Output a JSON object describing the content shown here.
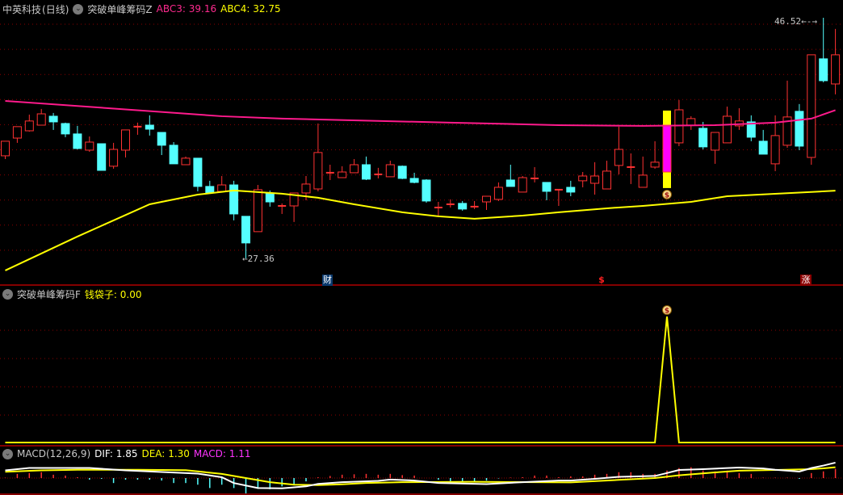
{
  "header": {
    "stock_name": "中英科技",
    "period": "(日线)",
    "indicator_main": "突破单峰筹码Z",
    "abc3_label": "ABC3:",
    "abc3_value": "39.16",
    "abc4_label": "ABC4:",
    "abc4_value": "32.75"
  },
  "sub_panel": {
    "indicator": "突破单峰筹码F",
    "label": "钱袋子:",
    "value": "0.00"
  },
  "macd_panel": {
    "name": "MACD(12,26,9)",
    "dif_label": "DIF:",
    "dif_value": "1.85",
    "dea_label": "DEA:",
    "dea_value": "1.30",
    "macd_label": "MACD:",
    "macd_value": "1.11"
  },
  "price_labels": {
    "high": "46.52",
    "low": "27.36",
    "high_arrow": "←-→",
    "low_arrow": "←"
  },
  "markers": {
    "cai": "财",
    "dollar": "$",
    "zhang": "涨"
  },
  "icons": {
    "collapse": "chevron-down-icon",
    "money_bag": "money-bag-icon"
  },
  "colors": {
    "up": "#ff3232",
    "down": "#54ffff",
    "ma_abc3": "#ff1a8c",
    "ma_abc4": "#ffff00",
    "signal": "#ffff00",
    "highlight": "#ffff00",
    "highlight_body": "#ff00ff",
    "grid": "#8b0000",
    "separator": "#b00000",
    "dif": "#ffffff",
    "dea": "#ffff00"
  },
  "chart_data": {
    "type": "candlestick",
    "price_range": [
      27.36,
      46.52
    ],
    "candles": [
      [
        35.53,
        36.69,
        35.27,
        36.69
      ],
      [
        36.94,
        37.85,
        36.56,
        37.85
      ],
      [
        37.52,
        38.81,
        37.46,
        38.3
      ],
      [
        37.97,
        39.26,
        37.97,
        38.87
      ],
      [
        38.68,
        38.94,
        37.59,
        38.23
      ],
      [
        38.1,
        38.17,
        37.01,
        37.27
      ],
      [
        37.27,
        37.91,
        36.04,
        36.11
      ],
      [
        35.98,
        37.07,
        35.85,
        36.62
      ],
      [
        36.49,
        36.49,
        34.37,
        34.37
      ],
      [
        34.7,
        36.56,
        34.5,
        36.04
      ],
      [
        35.98,
        37.59,
        35.4,
        37.59
      ],
      [
        37.85,
        38.17,
        37.2,
        37.85
      ],
      [
        37.97,
        38.75,
        37.14,
        37.65
      ],
      [
        37.39,
        37.39,
        35.59,
        36.37
      ],
      [
        36.37,
        36.62,
        34.89,
        34.89
      ],
      [
        34.82,
        35.47,
        34.82,
        35.34
      ],
      [
        35.34,
        35.34,
        32.7,
        33.09
      ],
      [
        33.09,
        33.54,
        32.57,
        32.57
      ],
      [
        32.7,
        33.92,
        32.7,
        33.21
      ],
      [
        33.21,
        33.54,
        30.39,
        30.9
      ],
      [
        30.71,
        30.71,
        27.36,
        28.59
      ],
      [
        29.49,
        33.21,
        29.49,
        32.83
      ],
      [
        32.51,
        32.77,
        31.48,
        31.86
      ],
      [
        31.54,
        31.74,
        30.9,
        31.54
      ],
      [
        31.54,
        32.57,
        30.26,
        32.57
      ],
      [
        32.57,
        33.92,
        31.99,
        33.28
      ],
      [
        32.89,
        38.1,
        32.7,
        35.79
      ],
      [
        34.18,
        34.82,
        33.6,
        34.18
      ],
      [
        33.79,
        34.7,
        33.79,
        34.24
      ],
      [
        34.18,
        35.27,
        34.18,
        34.82
      ],
      [
        34.82,
        35.47,
        33.6,
        33.67
      ],
      [
        34.05,
        34.57,
        33.73,
        34.05
      ],
      [
        33.86,
        35.14,
        33.86,
        34.82
      ],
      [
        34.7,
        34.76,
        33.67,
        33.73
      ],
      [
        33.73,
        34.18,
        33.34,
        33.41
      ],
      [
        33.6,
        33.67,
        31.8,
        31.93
      ],
      [
        31.41,
        31.86,
        30.77,
        31.41
      ],
      [
        31.67,
        32.06,
        31.41,
        31.67
      ],
      [
        31.74,
        31.93,
        31.16,
        31.29
      ],
      [
        31.48,
        31.93,
        31.29,
        31.48
      ],
      [
        31.86,
        32.31,
        31.22,
        32.31
      ],
      [
        32.06,
        33.41,
        31.93,
        33.02
      ],
      [
        33.6,
        34.82,
        33.09,
        33.09
      ],
      [
        32.64,
        33.92,
        32.64,
        33.79
      ],
      [
        33.73,
        34.63,
        33.41,
        33.73
      ],
      [
        33.41,
        33.41,
        31.99,
        32.7
      ],
      [
        32.83,
        32.83,
        31.54,
        32.83
      ],
      [
        33.02,
        33.54,
        32.31,
        32.64
      ],
      [
        33.54,
        34.24,
        33.02,
        33.92
      ],
      [
        33.34,
        35.02,
        32.44,
        33.92
      ],
      [
        32.89,
        35.14,
        32.89,
        34.31
      ],
      [
        34.76,
        37.85,
        34.05,
        36.04
      ],
      [
        34.63,
        35.72,
        33.28,
        34.63
      ],
      [
        33.02,
        35.47,
        33.02,
        33.99
      ],
      [
        34.63,
        36.69,
        34.5,
        35.02
      ],
      [
        34.24,
        37.91,
        34.24,
        37.91
      ],
      [
        36.56,
        39.97,
        36.3,
        39.19
      ],
      [
        37.97,
        38.68,
        37.59,
        38.49
      ],
      [
        37.72,
        38.23,
        36.04,
        36.24
      ],
      [
        35.98,
        37.39,
        34.89,
        37.39
      ],
      [
        36.56,
        39.45,
        36.56,
        38.68
      ],
      [
        37.91,
        39.32,
        37.59,
        38.3
      ],
      [
        38.23,
        38.75,
        36.69,
        37.01
      ],
      [
        36.69,
        37.59,
        35.66,
        35.66
      ],
      [
        34.89,
        38.75,
        34.31,
        37.14
      ],
      [
        36.37,
        41.51,
        36.17,
        38.62
      ],
      [
        39.07,
        39.65,
        35.98,
        36.3
      ],
      [
        35.4,
        43.57,
        34.82,
        43.57
      ],
      [
        43.25,
        46.52,
        41.38,
        41.51
      ],
      [
        41.25,
        45.63,
        40.42,
        43.57
      ]
    ],
    "candle_fields": [
      "open",
      "high",
      "low",
      "close"
    ],
    "abc3_line": [
      [
        1,
        39.9
      ],
      [
        19,
        38.68
      ],
      [
        24,
        38.49
      ],
      [
        38,
        38.17
      ],
      [
        47,
        37.97
      ],
      [
        54,
        37.91
      ],
      [
        60,
        37.97
      ],
      [
        65,
        38.17
      ],
      [
        68,
        38.49
      ],
      [
        70,
        39.16
      ]
    ],
    "abc4_line": [
      [
        1,
        26.4
      ],
      [
        7,
        29.1
      ],
      [
        13,
        31.67
      ],
      [
        17,
        32.44
      ],
      [
        20,
        32.77
      ],
      [
        24,
        32.51
      ],
      [
        27,
        32.19
      ],
      [
        30,
        31.67
      ],
      [
        34,
        31.03
      ],
      [
        37,
        30.71
      ],
      [
        40,
        30.52
      ],
      [
        44,
        30.77
      ],
      [
        47,
        31.03
      ],
      [
        51,
        31.35
      ],
      [
        54,
        31.54
      ],
      [
        58,
        31.86
      ],
      [
        61,
        32.31
      ],
      [
        70,
        32.75
      ]
    ],
    "highlight_candle": 56,
    "highlight_range": [
      32.96,
      39.13
    ],
    "money_bag_candle": 56,
    "signal": {
      "candle": 56,
      "peak_value": 1,
      "base_value": 0
    },
    "macd": {
      "dif": [
        [
          1,
          0.92
        ],
        [
          3,
          1.21
        ],
        [
          8,
          1.21
        ],
        [
          11,
          0.92
        ],
        [
          14,
          0.73
        ],
        [
          17,
          0.53
        ],
        [
          19,
          0.1
        ],
        [
          20,
          -0.6
        ],
        [
          22,
          -1.2
        ],
        [
          24,
          -1.24
        ],
        [
          26,
          -1.0
        ],
        [
          27,
          -0.7
        ],
        [
          29,
          -0.5
        ],
        [
          32,
          -0.34
        ],
        [
          33,
          -0.18
        ],
        [
          35,
          -0.3
        ],
        [
          37,
          -0.6
        ],
        [
          41,
          -0.73
        ],
        [
          44,
          -0.5
        ],
        [
          47,
          -0.3
        ],
        [
          48,
          -0.3
        ],
        [
          50,
          -0.1
        ],
        [
          52,
          0.15
        ],
        [
          55,
          0.25
        ],
        [
          56,
          0.6
        ],
        [
          57,
          0.97
        ],
        [
          59,
          1.07
        ],
        [
          61,
          1.2
        ],
        [
          62,
          1.26
        ],
        [
          64,
          1.15
        ],
        [
          65,
          1.0
        ],
        [
          67,
          0.78
        ],
        [
          68,
          1.2
        ],
        [
          69,
          1.5
        ],
        [
          70,
          1.85
        ]
      ],
      "dea": [
        [
          1,
          0.75
        ],
        [
          4,
          0.92
        ],
        [
          7,
          1.0
        ],
        [
          12,
          1.0
        ],
        [
          16,
          0.95
        ],
        [
          17,
          0.8
        ],
        [
          19,
          0.5
        ],
        [
          21,
          0
        ],
        [
          23,
          -0.5
        ],
        [
          25,
          -0.8
        ],
        [
          27,
          -0.85
        ],
        [
          29,
          -0.75
        ],
        [
          31,
          -0.6
        ],
        [
          34,
          -0.5
        ],
        [
          40,
          -0.45
        ],
        [
          45,
          -0.5
        ],
        [
          48,
          -0.52
        ],
        [
          52,
          -0.22
        ],
        [
          55,
          0
        ],
        [
          57,
          0.33
        ],
        [
          60,
          0.68
        ],
        [
          62,
          0.88
        ],
        [
          65,
          0.97
        ],
        [
          68,
          1.07
        ],
        [
          69,
          1.17
        ],
        [
          70,
          1.3
        ]
      ],
      "hist": [
        0.05,
        0.5,
        0.6,
        0.7,
        0.4,
        0.3,
        0.1,
        -0.2,
        -0.1,
        -0.6,
        -0.2,
        -0.2,
        -0.2,
        -0.3,
        -0.6,
        -0.6,
        -0.8,
        -1.2,
        -0.8,
        -1.2,
        -1.85,
        -1.3,
        -1.35,
        -1.0,
        -0.8,
        -0.4,
        0.1,
        0.25,
        0.4,
        0.45,
        0.5,
        0.4,
        0.5,
        0.35,
        0.3,
        0.0,
        -0.2,
        -0.4,
        -0.4,
        -0.5,
        -0.3,
        -0.05,
        0.05,
        0.1,
        0.3,
        0.3,
        0.1,
        0.2,
        0.2,
        0.4,
        0.5,
        0.7,
        0.7,
        0.5,
        0.5,
        0.9,
        1.2,
        1.3,
        0.9,
        0.8,
        0.9,
        0.6,
        0.5,
        0.05,
        0.05,
        0.05,
        -0.1,
        0.6,
        0.8,
        1.1
      ]
    }
  }
}
